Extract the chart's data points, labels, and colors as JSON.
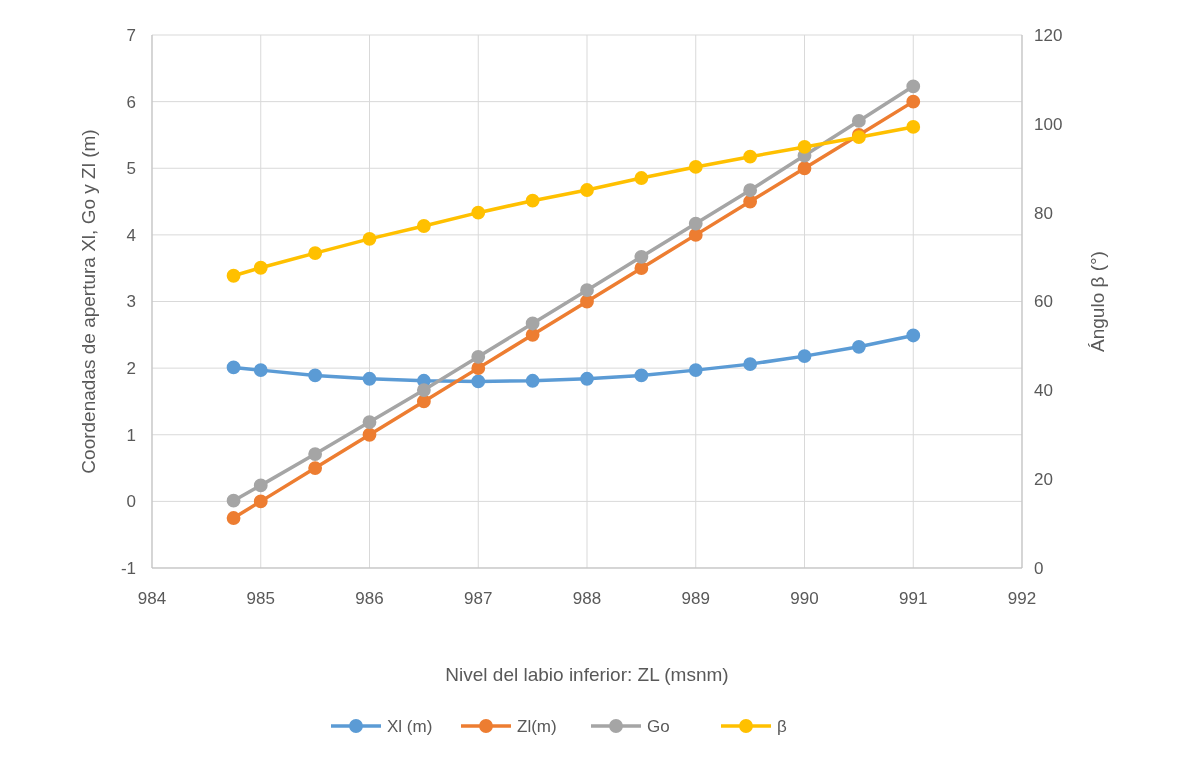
{
  "chart_data": {
    "type": "line",
    "xlabel": "Nivel del labio inferior: ZL (msnm)",
    "ylabel": "Coordenadas de apertura Xl, Go y Zl (m)",
    "y2label": "Ángulo β (°)",
    "x": [
      984.75,
      985,
      985.5,
      986,
      986.5,
      987,
      987.5,
      988,
      988.5,
      989,
      989.5,
      990,
      990.5,
      991
    ],
    "series": [
      {
        "name": "Xl (m)",
        "color": "#5b9bd5",
        "values": [
          2.01,
          1.97,
          1.89,
          1.84,
          1.81,
          1.8,
          1.81,
          1.84,
          1.89,
          1.97,
          2.06,
          2.18,
          2.32,
          2.49
        ]
      },
      {
        "name": "Zl(m)",
        "color": "#ed7d31",
        "values": [
          -0.25,
          0,
          0.5,
          1,
          1.5,
          2,
          2.5,
          3,
          3.5,
          4,
          4.5,
          5,
          5.5,
          6
        ]
      },
      {
        "name": "Go",
        "color": "#a5a5a5",
        "values": [
          0.01,
          0.24,
          0.71,
          1.19,
          1.67,
          2.17,
          2.67,
          3.17,
          3.67,
          4.17,
          4.67,
          5.19,
          5.71,
          6.23
        ]
      },
      {
        "name": "β",
        "color": "#ffc000",
        "axis": "y2",
        "values": [
          65.8,
          67.6,
          70.9,
          74.1,
          77,
          80,
          82.7,
          85.1,
          87.8,
          90.3,
          92.6,
          94.8,
          97,
          99.3
        ]
      }
    ],
    "xlim": [
      984,
      992
    ],
    "xticks": [
      984,
      985,
      986,
      987,
      988,
      989,
      990,
      991,
      992
    ],
    "ylim": [
      -1,
      7
    ],
    "yticks": [
      -1,
      0,
      1,
      2,
      3,
      4,
      5,
      6,
      7
    ],
    "y2lim": [
      0,
      120
    ],
    "y2ticks": [
      0,
      20,
      40,
      60,
      80,
      100,
      120
    ],
    "grid": true,
    "legend": "bottom",
    "marker": "circle",
    "line_style": "solid"
  }
}
